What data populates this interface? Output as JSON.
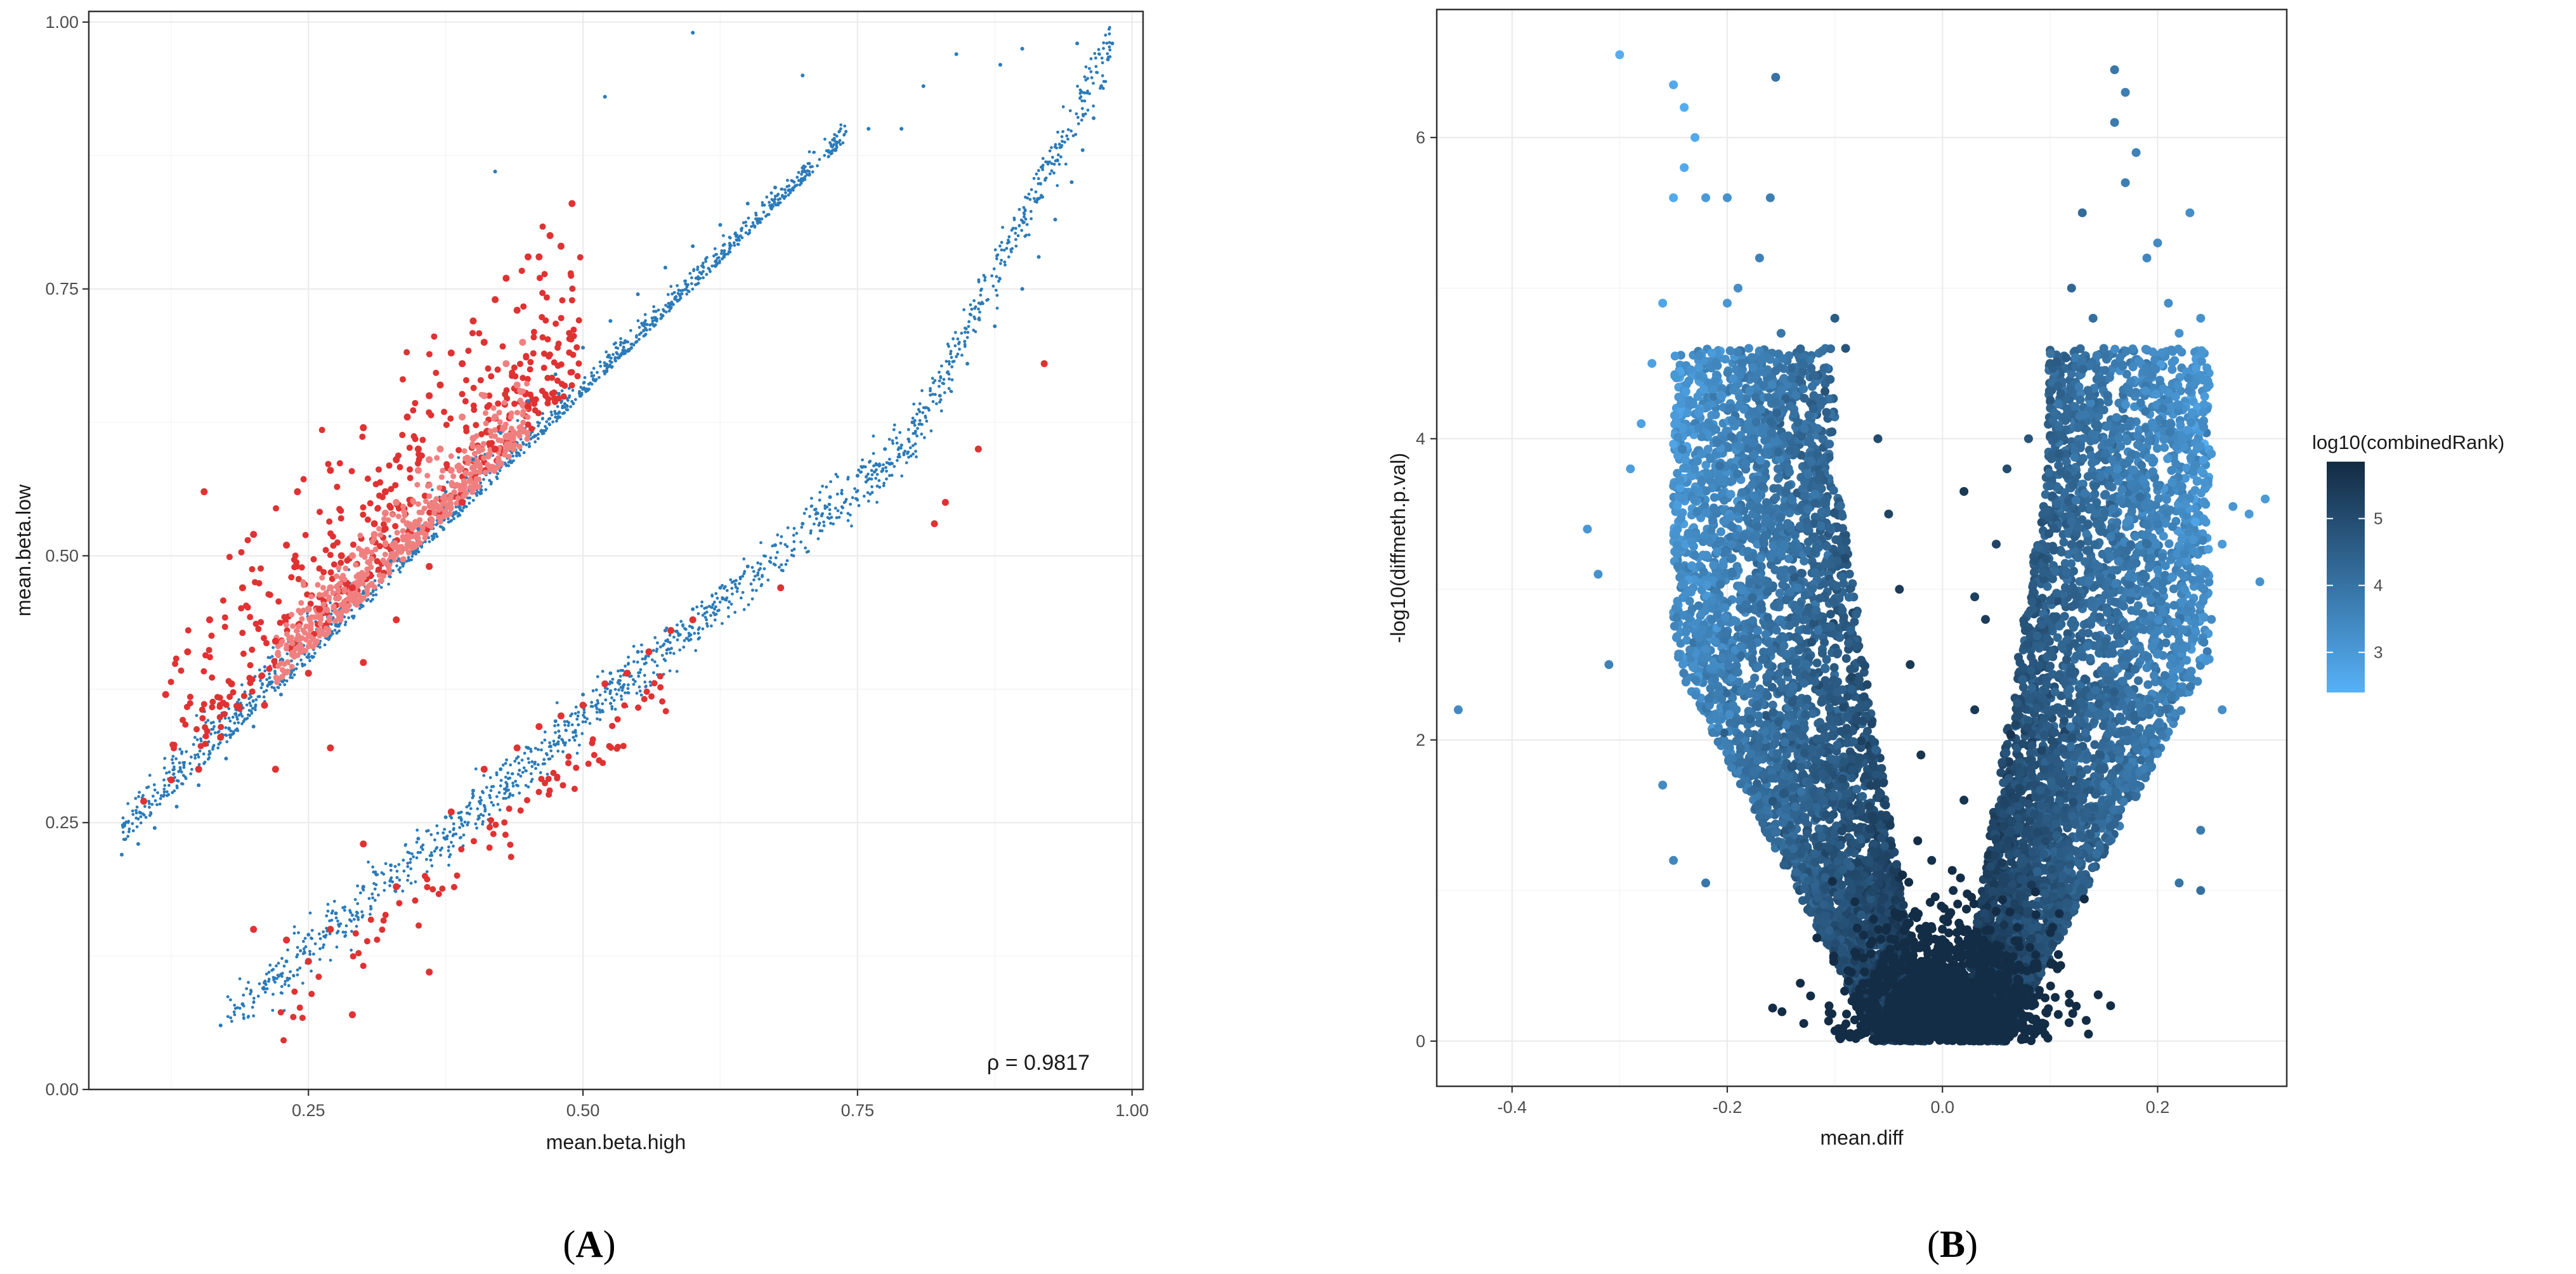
{
  "chart_data": [
    {
      "panel": "A",
      "type": "scatter",
      "title": "",
      "xlabel": "mean.beta.high",
      "ylabel": "mean.beta.low",
      "xlim": [
        0.05,
        1.01
      ],
      "ylim": [
        0,
        1.01
      ],
      "xticks": [
        0.25,
        0.5,
        0.75,
        1.0
      ],
      "xtick_labels": [
        "0.25",
        "0.50",
        "0.75",
        "1.00"
      ],
      "yticks": [
        0,
        0.25,
        0.5,
        0.75,
        1.0
      ],
      "ytick_labels": [
        "0.00",
        "0.25",
        "0.50",
        "0.75",
        "1.00"
      ],
      "grid": true,
      "annotation": "ρ = 0.9817",
      "colors": {
        "blue": "#2b7bb9",
        "red": "#e03232",
        "salmon": "#f08080"
      },
      "series": [
        {
          "color": "blue",
          "points": [
            [
              0.08,
              0.22
            ],
            [
              0.095,
              0.23
            ],
            [
              0.11,
              0.245
            ],
            [
              0.13,
              0.265
            ],
            [
              0.15,
              0.285
            ],
            [
              0.175,
              0.31
            ],
            [
              0.2,
              0.34
            ],
            [
              0.225,
              0.37
            ],
            [
              0.25,
              0.405
            ],
            [
              0.275,
              0.435
            ],
            [
              0.3,
              0.465
            ],
            [
              0.325,
              0.495
            ],
            [
              0.35,
              0.525
            ],
            [
              0.375,
              0.56
            ],
            [
              0.4,
              0.59
            ],
            [
              0.425,
              0.615
            ],
            [
              0.45,
              0.645
            ],
            [
              0.475,
              0.67
            ],
            [
              0.5,
              0.695
            ],
            [
              0.525,
              0.72
            ],
            [
              0.55,
              0.745
            ],
            [
              0.575,
              0.77
            ],
            [
              0.6,
              0.79
            ],
            [
              0.625,
              0.81
            ],
            [
              0.65,
              0.83
            ],
            [
              0.675,
              0.845
            ],
            [
              0.7,
              0.86
            ],
            [
              0.73,
              0.88
            ],
            [
              0.42,
              0.86
            ],
            [
              0.17,
              0.06
            ],
            [
              0.19,
              0.08
            ],
            [
              0.21,
              0.1
            ],
            [
              0.23,
              0.12
            ],
            [
              0.25,
              0.145
            ],
            [
              0.275,
              0.165
            ],
            [
              0.3,
              0.19
            ],
            [
              0.325,
              0.21
            ],
            [
              0.35,
              0.235
            ],
            [
              0.375,
              0.255
            ],
            [
              0.4,
              0.28
            ],
            [
              0.425,
              0.3
            ],
            [
              0.45,
              0.32
            ],
            [
              0.475,
              0.345
            ],
            [
              0.5,
              0.37
            ],
            [
              0.525,
              0.39
            ],
            [
              0.55,
              0.41
            ],
            [
              0.575,
              0.43
            ],
            [
              0.6,
              0.45
            ],
            [
              0.625,
              0.47
            ],
            [
              0.65,
              0.49
            ],
            [
              0.675,
              0.51
            ],
            [
              0.7,
              0.53
            ],
            [
              0.725,
              0.555
            ],
            [
              0.75,
              0.575
            ],
            [
              0.775,
              0.6
            ],
            [
              0.8,
              0.625
            ],
            [
              0.825,
              0.65
            ],
            [
              0.85,
              0.68
            ],
            [
              0.875,
              0.715
            ],
            [
              0.9,
              0.75
            ],
            [
              0.915,
              0.78
            ],
            [
              0.93,
              0.815
            ],
            [
              0.945,
              0.85
            ],
            [
              0.955,
              0.88
            ],
            [
              0.965,
              0.91
            ],
            [
              0.972,
              0.94
            ],
            [
              0.978,
              0.965
            ],
            [
              0.982,
              0.98
            ],
            [
              0.88,
              0.96
            ],
            [
              0.84,
              0.97
            ],
            [
              0.81,
              0.94
            ],
            [
              0.79,
              0.9
            ],
            [
              0.76,
              0.9
            ],
            [
              0.7,
              0.95
            ],
            [
              0.52,
              0.93
            ],
            [
              0.6,
              0.99
            ],
            [
              0.9,
              0.975
            ],
            [
              0.95,
              0.98
            ]
          ]
        },
        {
          "color": "red",
          "points": [
            [
              0.12,
              0.37
            ],
            [
              0.14,
              0.41
            ],
            [
              0.16,
              0.44
            ],
            [
              0.17,
              0.33
            ],
            [
              0.18,
              0.38
            ],
            [
              0.19,
              0.47
            ],
            [
              0.2,
              0.52
            ],
            [
              0.21,
              0.36
            ],
            [
              0.22,
              0.42
            ],
            [
              0.23,
              0.51
            ],
            [
              0.24,
              0.56
            ],
            [
              0.25,
              0.39
            ],
            [
              0.26,
              0.45
            ],
            [
              0.27,
              0.58
            ],
            [
              0.28,
              0.5
            ],
            [
              0.29,
              0.47
            ],
            [
              0.3,
              0.62
            ],
            [
              0.31,
              0.53
            ],
            [
              0.32,
              0.56
            ],
            [
              0.33,
              0.59
            ],
            [
              0.34,
              0.63
            ],
            [
              0.35,
              0.6
            ],
            [
              0.36,
              0.65
            ],
            [
              0.37,
              0.66
            ],
            [
              0.38,
              0.69
            ],
            [
              0.39,
              0.68
            ],
            [
              0.4,
              0.72
            ],
            [
              0.41,
              0.7
            ],
            [
              0.42,
              0.74
            ],
            [
              0.43,
              0.76
            ],
            [
              0.44,
              0.73
            ],
            [
              0.45,
              0.78
            ],
            [
              0.46,
              0.78
            ],
            [
              0.47,
              0.8
            ],
            [
              0.48,
              0.79
            ],
            [
              0.49,
              0.83
            ],
            [
              0.27,
              0.32
            ],
            [
              0.3,
              0.4
            ],
            [
              0.33,
              0.44
            ],
            [
              0.36,
              0.49
            ],
            [
              0.39,
              0.55
            ],
            [
              0.42,
              0.6
            ],
            [
              0.45,
              0.64
            ],
            [
              0.1,
              0.27
            ],
            [
              0.125,
              0.29
            ],
            [
              0.15,
              0.3
            ],
            [
              0.22,
              0.3
            ],
            [
              0.155,
              0.56
            ],
            [
              0.29,
              0.07
            ],
            [
              0.36,
              0.11
            ],
            [
              0.25,
              0.12
            ],
            [
              0.27,
              0.15
            ],
            [
              0.33,
              0.19
            ],
            [
              0.38,
              0.26
            ],
            [
              0.41,
              0.3
            ],
            [
              0.44,
              0.32
            ],
            [
              0.46,
              0.34
            ],
            [
              0.48,
              0.35
            ],
            [
              0.5,
              0.36
            ],
            [
              0.52,
              0.38
            ],
            [
              0.54,
              0.39
            ],
            [
              0.56,
              0.41
            ],
            [
              0.58,
              0.43
            ],
            [
              0.6,
              0.44
            ],
            [
              0.68,
              0.47
            ],
            [
              0.82,
              0.53
            ],
            [
              0.83,
              0.55
            ],
            [
              0.86,
              0.6
            ],
            [
              0.92,
              0.68
            ],
            [
              0.2,
              0.15
            ],
            [
              0.23,
              0.14
            ],
            [
              0.3,
              0.23
            ]
          ]
        },
        {
          "color": "salmon",
          "points": [
            [
              0.25,
              0.45
            ],
            [
              0.27,
              0.47
            ],
            [
              0.29,
              0.5
            ],
            [
              0.31,
              0.52
            ],
            [
              0.33,
              0.55
            ],
            [
              0.35,
              0.58
            ],
            [
              0.37,
              0.6
            ],
            [
              0.39,
              0.63
            ],
            [
              0.41,
              0.65
            ],
            [
              0.43,
              0.68
            ],
            [
              0.445,
              0.7
            ],
            [
              0.3,
              0.48
            ],
            [
              0.34,
              0.53
            ],
            [
              0.38,
              0.58
            ],
            [
              0.42,
              0.63
            ],
            [
              0.36,
              0.59
            ],
            [
              0.32,
              0.54
            ],
            [
              0.4,
              0.61
            ],
            [
              0.44,
              0.66
            ],
            [
              0.26,
              0.43
            ]
          ]
        }
      ]
    },
    {
      "panel": "B",
      "type": "scatter",
      "title": "",
      "xlabel": "mean.diff",
      "ylabel": "-log10(diffmeth.p.val)",
      "xlim": [
        -0.47,
        0.32
      ],
      "ylim": [
        -0.3,
        6.85
      ],
      "xticks": [
        -0.4,
        -0.2,
        0.0,
        0.2
      ],
      "xtick_labels": [
        "-0.4",
        "-0.2",
        "0.0",
        "0.2"
      ],
      "yticks": [
        0,
        2,
        4,
        6
      ],
      "ytick_labels": [
        "0",
        "2",
        "4",
        "6"
      ],
      "grid": true,
      "color_scale": {
        "name": "log10(combinedRank)",
        "low": "#56b1f7",
        "high": "#132b43",
        "min": 2.4,
        "max": 5.85,
        "breaks": [
          3,
          4,
          5
        ],
        "break_labels": [
          "3",
          "4",
          "5"
        ]
      },
      "points": [
        [
          -0.45,
          2.2,
          3.4
        ],
        [
          -0.33,
          3.4,
          3.1
        ],
        [
          -0.32,
          3.1,
          3.2
        ],
        [
          -0.31,
          2.5,
          3.6
        ],
        [
          -0.3,
          6.55,
          2.5
        ],
        [
          -0.29,
          3.8,
          2.9
        ],
        [
          -0.28,
          4.1,
          2.8
        ],
        [
          -0.27,
          4.5,
          2.8
        ],
        [
          -0.26,
          4.9,
          2.7
        ],
        [
          -0.25,
          5.6,
          2.6
        ],
        [
          -0.25,
          6.35,
          2.6
        ],
        [
          -0.24,
          6.2,
          2.5
        ],
        [
          -0.24,
          5.8,
          2.6
        ],
        [
          -0.23,
          6.0,
          2.6
        ],
        [
          -0.22,
          5.6,
          3.0
        ],
        [
          -0.2,
          5.6,
          3.2
        ],
        [
          -0.2,
          4.9,
          3.1
        ],
        [
          -0.19,
          5.0,
          3.3
        ],
        [
          -0.18,
          4.6,
          3.4
        ],
        [
          -0.17,
          5.2,
          3.6
        ],
        [
          -0.16,
          5.6,
          3.7
        ],
        [
          -0.155,
          6.4,
          4.0
        ],
        [
          -0.15,
          4.7,
          3.9
        ],
        [
          -0.14,
          4.4,
          4.1
        ],
        [
          -0.13,
          4.5,
          4.2
        ],
        [
          -0.12,
          4.2,
          4.4
        ],
        [
          -0.1,
          4.8,
          4.6
        ],
        [
          -0.09,
          4.6,
          4.8
        ],
        [
          -0.06,
          4.0,
          5.0
        ],
        [
          -0.05,
          3.5,
          5.2
        ],
        [
          -0.04,
          3.0,
          5.4
        ],
        [
          -0.03,
          2.5,
          5.5
        ],
        [
          -0.02,
          1.9,
          5.6
        ],
        [
          -0.01,
          1.2,
          5.7
        ],
        [
          0.0,
          0.6,
          5.8
        ],
        [
          0.01,
          1.0,
          5.7
        ],
        [
          0.02,
          1.6,
          5.6
        ],
        [
          0.03,
          2.2,
          5.5
        ],
        [
          0.04,
          2.8,
          5.4
        ],
        [
          0.05,
          3.3,
          5.2
        ],
        [
          0.06,
          3.8,
          5.0
        ],
        [
          0.02,
          3.65,
          5.5
        ],
        [
          0.03,
          2.95,
          5.3
        ],
        [
          0.08,
          4.0,
          4.8
        ],
        [
          0.1,
          4.5,
          4.6
        ],
        [
          0.11,
          4.3,
          4.5
        ],
        [
          0.12,
          5.0,
          4.3
        ],
        [
          0.13,
          5.5,
          4.2
        ],
        [
          0.14,
          4.8,
          4.1
        ],
        [
          0.15,
          4.6,
          3.9
        ],
        [
          0.16,
          6.45,
          3.9
        ],
        [
          0.16,
          6.1,
          3.8
        ],
        [
          0.17,
          6.3,
          3.7
        ],
        [
          0.17,
          5.7,
          3.7
        ],
        [
          0.18,
          5.9,
          3.6
        ],
        [
          0.19,
          5.2,
          3.5
        ],
        [
          0.2,
          5.3,
          3.4
        ],
        [
          0.21,
          4.9,
          3.3
        ],
        [
          0.22,
          4.7,
          3.2
        ],
        [
          0.23,
          5.5,
          3.3
        ],
        [
          0.24,
          4.8,
          3.2
        ],
        [
          0.25,
          3.9,
          3.1
        ],
        [
          0.26,
          3.3,
          3.0
        ],
        [
          0.27,
          3.55,
          3.1
        ],
        [
          0.285,
          3.5,
          3.0
        ],
        [
          0.3,
          3.6,
          3.0
        ],
        [
          0.295,
          3.05,
          3.2
        ],
        [
          0.25,
          2.8,
          3.4
        ],
        [
          0.26,
          2.2,
          3.3
        ],
        [
          0.24,
          1.4,
          3.8
        ],
        [
          0.22,
          1.05,
          4.0
        ],
        [
          0.24,
          1.0,
          4.1
        ],
        [
          -0.25,
          1.2,
          3.5
        ],
        [
          -0.22,
          1.05,
          3.9
        ],
        [
          -0.26,
          1.7,
          3.4
        ]
      ]
    }
  ],
  "panel_labels": {
    "a": {
      "open": "(",
      "letter": "A",
      "close": ")"
    },
    "b": {
      "open": "(",
      "letter": "B",
      "close": ")"
    }
  }
}
